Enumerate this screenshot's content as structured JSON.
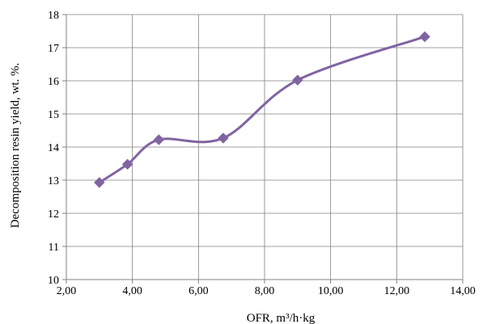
{
  "chart_data": {
    "type": "scatter",
    "xlabel": "OFR, m³/h·kg",
    "ylabel": "Decomposition resin yield, wt. %.",
    "xlim": [
      2,
      14
    ],
    "ylim": [
      10,
      18
    ],
    "x_ticks": [
      "2,00",
      "4,00",
      "6,00",
      "8,00",
      "10,00",
      "12,00",
      "14,00"
    ],
    "y_ticks": [
      "10",
      "11",
      "12",
      "13",
      "14",
      "15",
      "16",
      "17",
      "18"
    ],
    "grid": true,
    "line_style": "smoothed",
    "series": [
      {
        "x": [
          3.0,
          3.85,
          4.8,
          6.75,
          9.0,
          12.85
        ],
        "y": [
          12.93,
          13.48,
          14.22,
          14.27,
          16.02,
          17.33
        ],
        "color": "#8064a2",
        "marker": "diamond"
      }
    ]
  }
}
